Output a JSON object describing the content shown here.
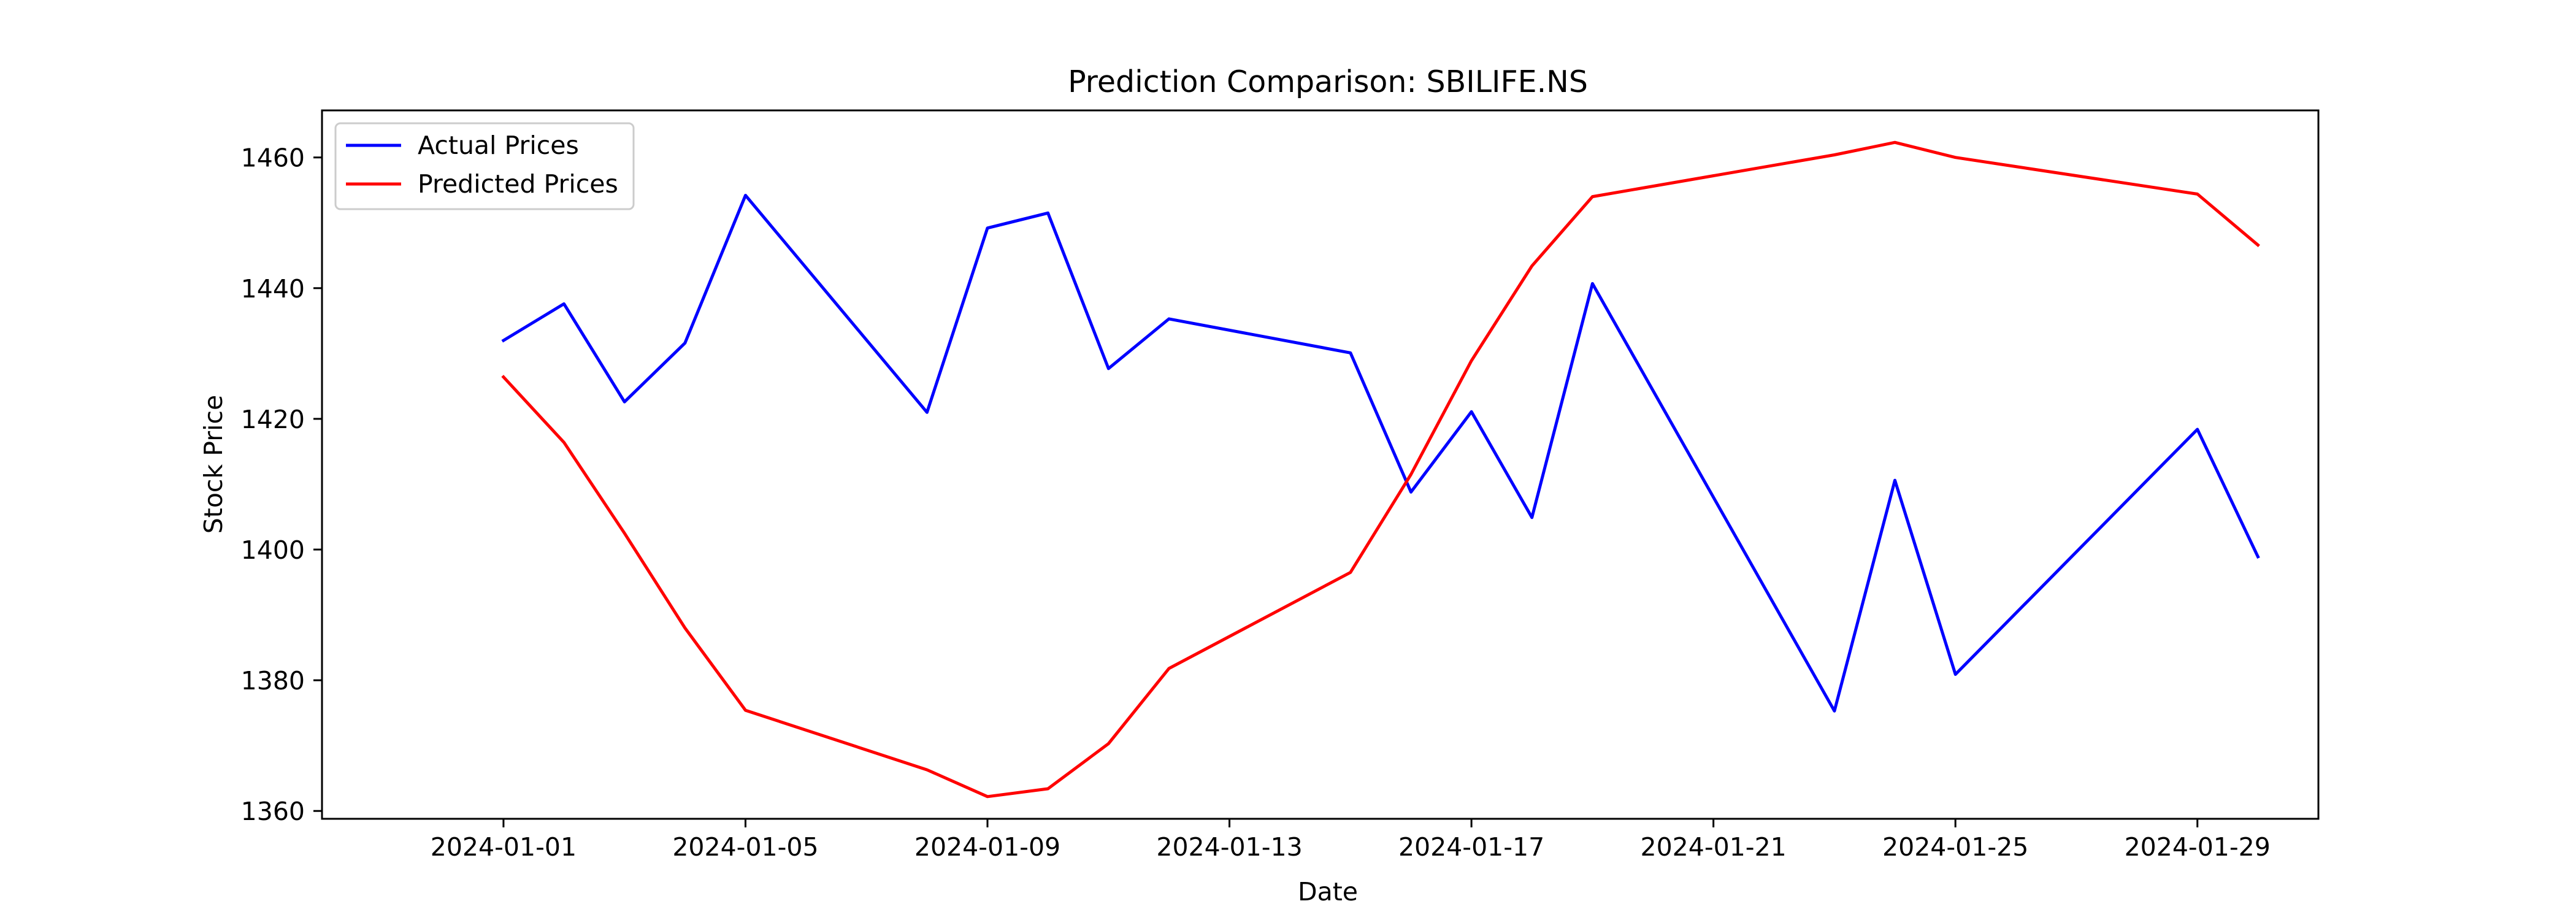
{
  "chart_data": {
    "type": "line",
    "title": "Prediction Comparison: SBILIFE.NS",
    "xlabel": "Date",
    "ylabel": "Stock Price",
    "x_ticks": [
      "2024-01-01",
      "2024-01-05",
      "2024-01-09",
      "2024-01-13",
      "2024-01-17",
      "2024-01-21",
      "2024-01-25",
      "2024-01-29"
    ],
    "y_ticks": [
      1360,
      1380,
      1400,
      1420,
      1440,
      1460
    ],
    "xlim": [
      "2023-12-29",
      "2024-01-31"
    ],
    "ylim": [
      1358.8,
      1467.2
    ],
    "grid": false,
    "legend_position": "top-left",
    "series": [
      {
        "name": "Actual Prices",
        "color": "#0000ff",
        "points": [
          {
            "x": "2024-01-01",
            "y": 1432.0
          },
          {
            "x": "2024-01-02",
            "y": 1437.6
          },
          {
            "x": "2024-01-03",
            "y": 1422.6
          },
          {
            "x": "2024-01-04",
            "y": 1431.6
          },
          {
            "x": "2024-01-05",
            "y": 1454.2
          },
          {
            "x": "2024-01-08",
            "y": 1421.0
          },
          {
            "x": "2024-01-09",
            "y": 1449.2
          },
          {
            "x": "2024-01-10",
            "y": 1451.5
          },
          {
            "x": "2024-01-11",
            "y": 1427.7
          },
          {
            "x": "2024-01-12",
            "y": 1435.3
          },
          {
            "x": "2024-01-15",
            "y": 1430.1
          },
          {
            "x": "2024-01-16",
            "y": 1408.8
          },
          {
            "x": "2024-01-17",
            "y": 1421.1
          },
          {
            "x": "2024-01-18",
            "y": 1404.9
          },
          {
            "x": "2024-01-19",
            "y": 1440.7
          },
          {
            "x": "2024-01-23",
            "y": 1375.3
          },
          {
            "x": "2024-01-24",
            "y": 1410.6
          },
          {
            "x": "2024-01-25",
            "y": 1380.9
          },
          {
            "x": "2024-01-29",
            "y": 1418.4
          },
          {
            "x": "2024-01-30",
            "y": 1398.9
          }
        ]
      },
      {
        "name": "Predicted Prices",
        "color": "#ff0000",
        "points": [
          {
            "x": "2024-01-01",
            "y": 1426.4
          },
          {
            "x": "2024-01-02",
            "y": 1416.4
          },
          {
            "x": "2024-01-03",
            "y": 1402.5
          },
          {
            "x": "2024-01-04",
            "y": 1388.0
          },
          {
            "x": "2024-01-05",
            "y": 1375.4
          },
          {
            "x": "2024-01-08",
            "y": 1366.3
          },
          {
            "x": "2024-01-09",
            "y": 1362.2
          },
          {
            "x": "2024-01-10",
            "y": 1363.4
          },
          {
            "x": "2024-01-11",
            "y": 1370.3
          },
          {
            "x": "2024-01-12",
            "y": 1381.8
          },
          {
            "x": "2024-01-15",
            "y": 1396.5
          },
          {
            "x": "2024-01-16",
            "y": 1411.5
          },
          {
            "x": "2024-01-17",
            "y": 1428.9
          },
          {
            "x": "2024-01-18",
            "y": 1443.4
          },
          {
            "x": "2024-01-19",
            "y": 1454.0
          },
          {
            "x": "2024-01-23",
            "y": 1460.4
          },
          {
            "x": "2024-01-24",
            "y": 1462.3
          },
          {
            "x": "2024-01-25",
            "y": 1460.0
          },
          {
            "x": "2024-01-29",
            "y": 1454.4
          },
          {
            "x": "2024-01-30",
            "y": 1446.6
          }
        ]
      }
    ]
  }
}
